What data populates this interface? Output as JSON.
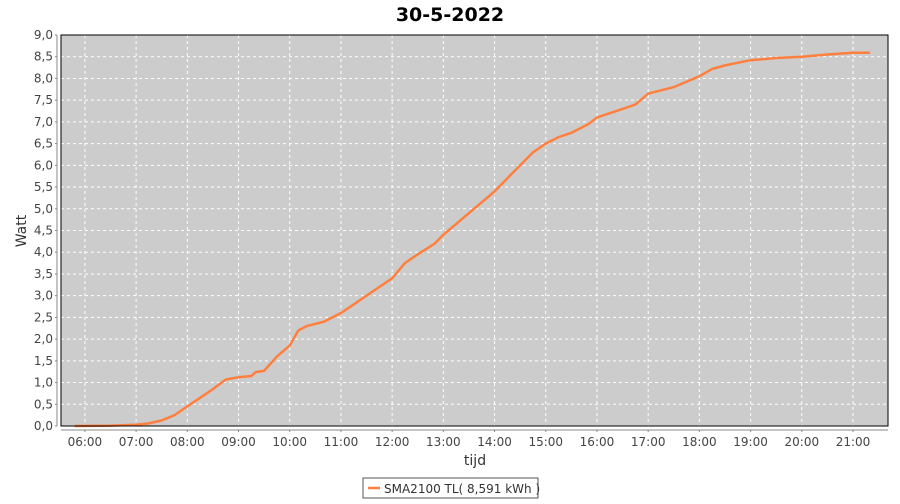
{
  "chart_data": {
    "type": "line",
    "title": "30-5-2022",
    "xlabel": "tijd",
    "ylabel": "Watt",
    "ylim": [
      0,
      9
    ],
    "xlim": [
      "05:32",
      "21:41"
    ],
    "grid": true,
    "legend_placement": "bottom",
    "background_color": "#cccccc",
    "yticks": [
      "0,0",
      "0,5",
      "1,0",
      "1,5",
      "2,0",
      "2,5",
      "3,0",
      "3,5",
      "4,0",
      "4,5",
      "5,0",
      "5,5",
      "6,0",
      "6,5",
      "7,0",
      "7,5",
      "8,0",
      "8,5",
      "9,0"
    ],
    "xticks": [
      "06:00",
      "07:00",
      "08:00",
      "09:00",
      "10:00",
      "11:00",
      "12:00",
      "13:00",
      "14:00",
      "15:00",
      "16:00",
      "17:00",
      "18:00",
      "19:00",
      "20:00",
      "21:00"
    ],
    "series": [
      {
        "name": "SMA2100 TL( 8,591 kWh )",
        "color": "#ff7f3f",
        "x": [
          "05:48",
          "06:30",
          "07:00",
          "07:15",
          "07:30",
          "07:45",
          "08:00",
          "08:15",
          "08:30",
          "08:45",
          "09:00",
          "09:15",
          "09:20",
          "09:30",
          "09:45",
          "10:00",
          "10:10",
          "10:20",
          "10:40",
          "11:00",
          "11:15",
          "11:30",
          "12:00",
          "12:15",
          "12:30",
          "12:50",
          "13:00",
          "13:30",
          "14:00",
          "14:20",
          "14:45",
          "15:00",
          "15:15",
          "15:30",
          "15:50",
          "16:00",
          "16:30",
          "16:45",
          "17:00",
          "17:30",
          "18:00",
          "18:15",
          "18:30",
          "19:00",
          "19:30",
          "20:00",
          "20:30",
          "21:00",
          "21:20"
        ],
        "values": [
          0,
          0.01,
          0.03,
          0.06,
          0.13,
          0.25,
          0.45,
          0.65,
          0.85,
          1.07,
          1.12,
          1.15,
          1.24,
          1.27,
          1.6,
          1.85,
          2.2,
          2.3,
          2.4,
          2.6,
          2.8,
          3.0,
          3.4,
          3.75,
          3.95,
          4.2,
          4.4,
          4.9,
          5.4,
          5.8,
          6.3,
          6.5,
          6.65,
          6.75,
          6.95,
          7.1,
          7.3,
          7.4,
          7.65,
          7.8,
          8.05,
          8.22,
          8.3,
          8.42,
          8.47,
          8.5,
          8.55,
          8.59,
          8.59
        ]
      }
    ]
  }
}
